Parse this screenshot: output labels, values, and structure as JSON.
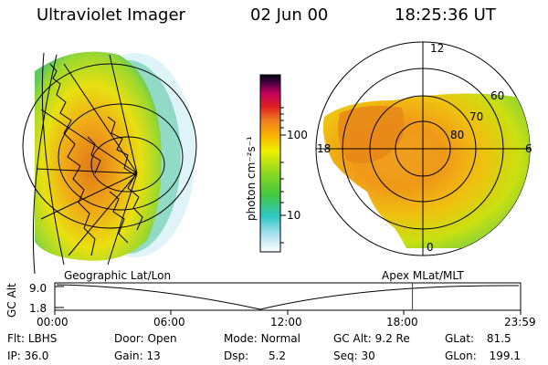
{
  "header": {
    "title": "Ultraviolet Imager",
    "date": "02 Jun 00",
    "time": "18:25:36 UT"
  },
  "colorbar": {
    "label": "photon cm⁻²s⁻¹",
    "ticks": [
      "100",
      "10"
    ]
  },
  "polar_plot": {
    "mlt_labels": [
      "12",
      "18",
      "6",
      "0"
    ],
    "mlat_labels": [
      "60",
      "70",
      "80"
    ]
  },
  "timeline": {
    "left_title": "Geographic Lat/Lon",
    "right_title": "Apex MLat/MLT",
    "y_label": "GC Alt",
    "y_ticks": [
      "9.0",
      "1.8"
    ],
    "x_ticks": [
      "00:00",
      "06:00",
      "12:00",
      "18:00",
      "23:59"
    ],
    "marker_time": "18:25:36",
    "marker_color": "#cc0000"
  },
  "status": {
    "row1": [
      {
        "label": "Flt:",
        "value": "LBHS"
      },
      {
        "label": "Door:",
        "value": "Open"
      },
      {
        "label": "Mode:",
        "value": "Normal"
      },
      {
        "label": "GC Alt:",
        "value": "9.2 Re"
      },
      {
        "label": "GLat:",
        "value": "81.5"
      }
    ],
    "row2": [
      {
        "label": "IP:",
        "value": "36.0"
      },
      {
        "label": "Gain:",
        "value": "13"
      },
      {
        "label": "Dsp:",
        "value": "5.2"
      },
      {
        "label": "Seq:",
        "value": "30"
      },
      {
        "label": "GLon:",
        "value": "199.1"
      }
    ]
  }
}
